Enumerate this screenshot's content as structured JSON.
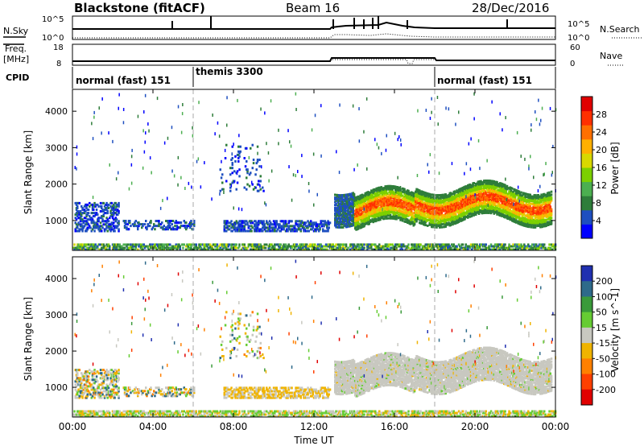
{
  "header": {
    "title": "Blackstone (fitACF)",
    "beam": "Beam 16",
    "date": "28/Dec/2016"
  },
  "panels": {
    "nsky_label": "N.Sky",
    "nsearch_label": "N.Search",
    "freq_label_line1": "Freq.",
    "freq_label_line2": "[MHz]",
    "nave_label": "Nave",
    "cpid_label": "CPID",
    "left_tick_top": "10^5",
    "left_tick_bottom": "10^0",
    "right_tick_top": "10^5",
    "right_tick_bottom": "10^0",
    "freq_tick_top": "18",
    "freq_tick_bottom": "8",
    "nave_tick_top": "60",
    "nave_tick_bottom": "0"
  },
  "cpid": {
    "segments": [
      {
        "label": "normal (fast) 151"
      },
      {
        "label": "themis 3300"
      },
      {
        "label": "normal (fast) 151"
      }
    ]
  },
  "colors": {
    "power": [
      "#0000ff",
      "#1e4fc0",
      "#2e7d3a",
      "#4caf50",
      "#7cd000",
      "#d8d800",
      "#ffb000",
      "#ff7000",
      "#ff3000",
      "#e00000"
    ],
    "velocity": [
      "#2030b0",
      "#2e6a8a",
      "#3a9a3a",
      "#66cc33",
      "#c8c8c0",
      "#f0b400",
      "#ff8000",
      "#ff4000",
      "#e00000"
    ]
  },
  "chart_data": [
    {
      "type": "heatmap",
      "title": "",
      "xlabel": "",
      "ylabel": "Slant Range [km]",
      "x_ticks": [
        "00:00",
        "04:00",
        "08:00",
        "12:00",
        "16:00",
        "20:00",
        "00:00"
      ],
      "y_ticks": [
        "1000",
        "2000",
        "3000",
        "4000"
      ],
      "ylim": [
        180,
        4600
      ],
      "colorbar_label": "Power [dB]",
      "colorbar_ticks": [
        "4",
        "8",
        "12",
        "16",
        "20",
        "24",
        "28"
      ],
      "colorbar_range": [
        0,
        32
      ]
    },
    {
      "type": "heatmap",
      "title": "",
      "xlabel": "Time UT",
      "ylabel": "Slant Range [km]",
      "x_ticks": [
        "00:00",
        "04:00",
        "08:00",
        "12:00",
        "16:00",
        "20:00",
        "00:00"
      ],
      "y_ticks": [
        "1000",
        "2000",
        "3000",
        "4000"
      ],
      "ylim": [
        180,
        4600
      ],
      "colorbar_label": "Velocity [m s^-1]",
      "colorbar_ticks": [
        "200",
        "100",
        "50",
        "15",
        "-15",
        "-50",
        "-100",
        "-200"
      ],
      "colorbar_range": [
        -250,
        250
      ]
    }
  ]
}
